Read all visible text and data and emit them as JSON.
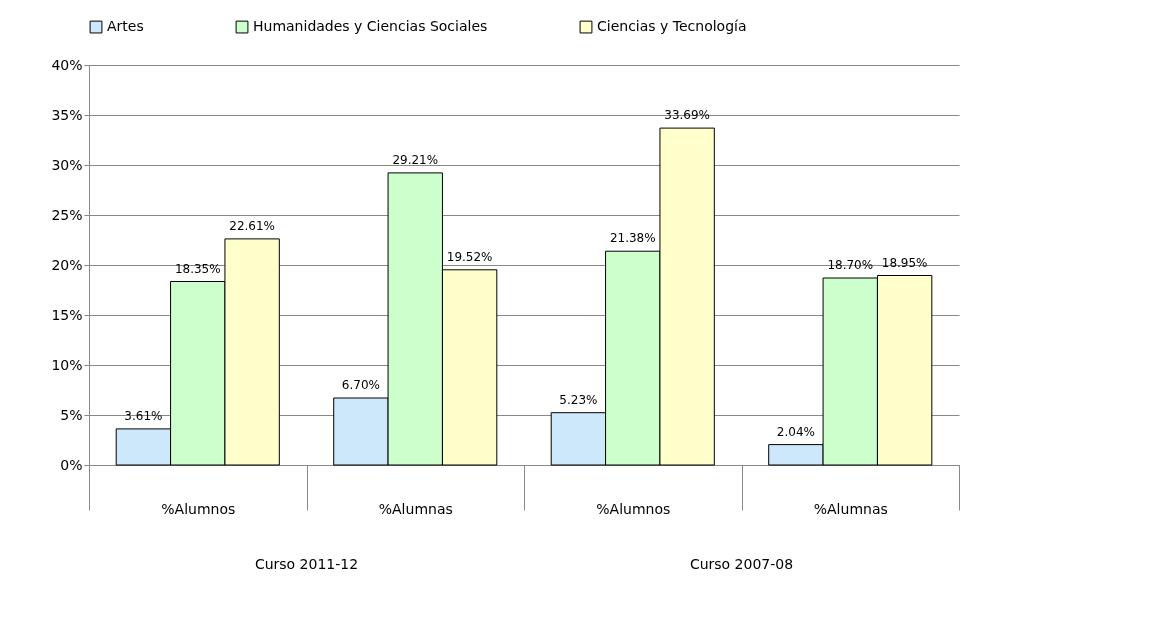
{
  "chart_data": {
    "type": "bar",
    "categories": [
      "%Alumnos",
      "%Alumnas",
      "%Alumnos",
      "%Alumnas"
    ],
    "series": [
      {
        "name": "Artes",
        "color": "#cce8fa",
        "values": [
          3.61,
          6.7,
          5.23,
          2.04
        ],
        "value_labels": [
          "3.61%",
          "6.70%",
          "5.23%",
          "2.04%"
        ]
      },
      {
        "name": "Humanidades y Ciencias Sociales",
        "color": "#ccffcc",
        "values": [
          18.35,
          29.21,
          21.38,
          18.7
        ],
        "value_labels": [
          "18.35%",
          "29.21%",
          "21.38%",
          "18.70%"
        ]
      },
      {
        "name": "Ciencias y Tecnología",
        "color": "#ffffcc",
        "values": [
          22.61,
          19.52,
          33.69,
          18.95
        ],
        "value_labels": [
          "22.61%",
          "19.52%",
          "33.69%",
          "18.95%"
        ]
      }
    ],
    "ylim": [
      0,
      40
    ],
    "yticks": [
      {
        "value": 0,
        "label": "0%"
      },
      {
        "value": 5,
        "label": "5%"
      },
      {
        "value": 10,
        "label": "10%"
      },
      {
        "value": 15,
        "label": "15%"
      },
      {
        "value": 20,
        "label": "20%"
      },
      {
        "value": 25,
        "label": "25%"
      },
      {
        "value": 30,
        "label": "30%"
      },
      {
        "value": 35,
        "label": "35%"
      },
      {
        "value": 40,
        "label": "40%"
      }
    ],
    "grid": "y",
    "legend": "top",
    "annotations": [
      "Curso 2011-12",
      "Curso 2007-08"
    ]
  }
}
